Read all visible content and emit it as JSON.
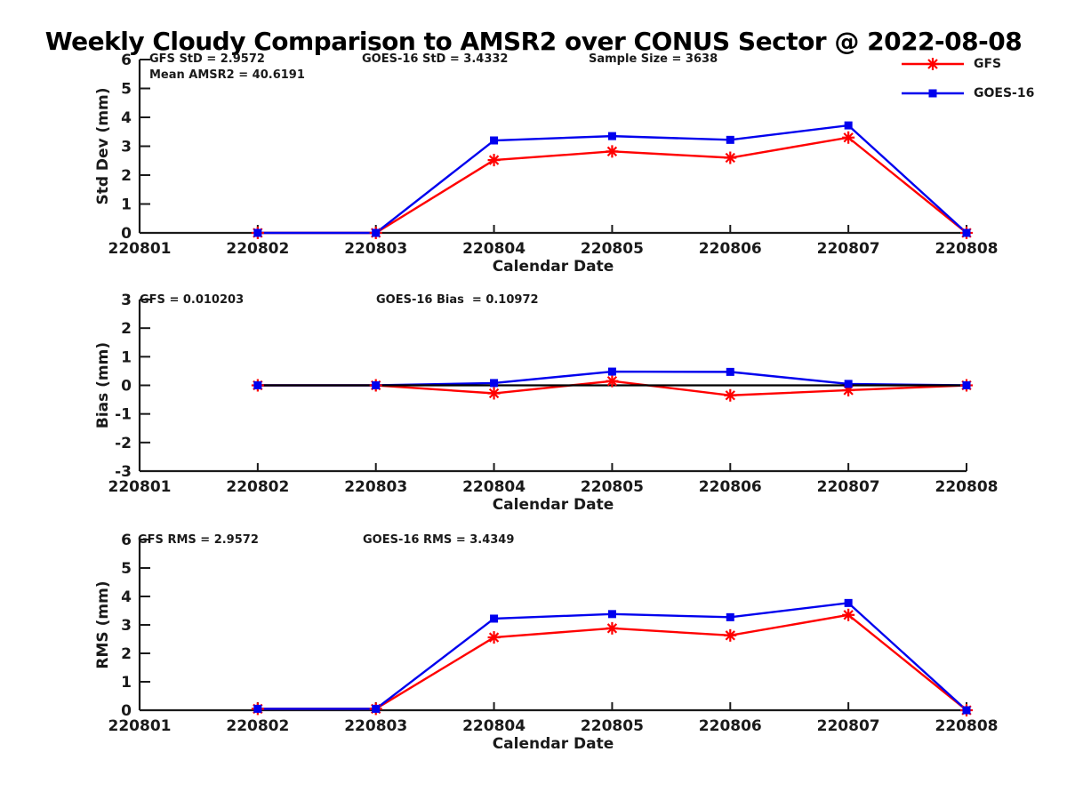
{
  "title": "Weekly Cloudy Comparison to AMSR2 over CONUS Sector @ 2022-08-08",
  "colors": {
    "gfs": "#FF0000",
    "goes16": "#0000EE",
    "axis": "#1a1a1a",
    "zero_line": "#000000"
  },
  "legend": [
    {
      "label": "GFS",
      "series": "gfs",
      "marker": "asterisk"
    },
    {
      "label": "GOES-16",
      "series": "goes16",
      "marker": "square"
    }
  ],
  "chart_data": [
    {
      "type": "line",
      "panel": "std-dev",
      "xlabel": "Calendar Date",
      "ylabel": "Std Dev (mm)",
      "ylim": [
        0,
        6
      ],
      "yticks": [
        0,
        1,
        2,
        3,
        4,
        5,
        6
      ],
      "x_ticks": [
        "220801",
        "220802",
        "220803",
        "220804",
        "220805",
        "220806",
        "220807",
        "220808"
      ],
      "x": [
        "220802",
        "220803",
        "220804",
        "220805",
        "220806",
        "220807",
        "220808"
      ],
      "series": [
        {
          "name": "GFS",
          "color_key": "gfs",
          "marker": "asterisk",
          "values": [
            0,
            0,
            2.52,
            2.82,
            2.6,
            3.3,
            0
          ]
        },
        {
          "name": "GOES-16",
          "color_key": "goes16",
          "marker": "square",
          "values": [
            0,
            0,
            3.2,
            3.35,
            3.22,
            3.72,
            0
          ]
        }
      ],
      "annotations": [
        {
          "text": "GFS StD = 2.9572"
        },
        {
          "text": "Mean AMSR2 = 40.6191"
        },
        {
          "text": "GOES-16 StD = 3.4332"
        },
        {
          "text": "Sample Size = 3638"
        }
      ]
    },
    {
      "type": "line",
      "panel": "bias",
      "xlabel": "Calendar Date",
      "ylabel": "Bias (mm)",
      "ylim": [
        -3,
        3
      ],
      "yticks": [
        3,
        2,
        1,
        0,
        -1,
        -2,
        -3
      ],
      "x_ticks": [
        "220801",
        "220802",
        "220803",
        "220804",
        "220805",
        "220806",
        "220807",
        "220808"
      ],
      "x": [
        "220802",
        "220803",
        "220804",
        "220805",
        "220806",
        "220807",
        "220808"
      ],
      "zero_line": true,
      "series": [
        {
          "name": "GFS",
          "color_key": "gfs",
          "marker": "asterisk",
          "values": [
            0,
            0,
            -0.28,
            0.15,
            -0.35,
            -0.17,
            0
          ]
        },
        {
          "name": "GOES-16",
          "color_key": "goes16",
          "marker": "square",
          "values": [
            0,
            0,
            0.08,
            0.48,
            0.47,
            0.05,
            0
          ]
        }
      ],
      "annotations": [
        {
          "text": "GFS = 0.010203"
        },
        {
          "text": "GOES-16 Bias  = 0.10972"
        }
      ]
    },
    {
      "type": "line",
      "panel": "rms",
      "xlabel": "Calendar Date",
      "ylabel": "RMS (mm)",
      "ylim": [
        0,
        6
      ],
      "yticks": [
        0,
        1,
        2,
        3,
        4,
        5,
        6
      ],
      "x_ticks": [
        "220801",
        "220802",
        "220803",
        "220804",
        "220805",
        "220806",
        "220807",
        "220808"
      ],
      "x": [
        "220802",
        "220803",
        "220804",
        "220805",
        "220806",
        "220807",
        "220808"
      ],
      "series": [
        {
          "name": "GFS",
          "color_key": "gfs",
          "marker": "asterisk",
          "values": [
            0.05,
            0.05,
            2.56,
            2.88,
            2.63,
            3.35,
            0
          ]
        },
        {
          "name": "GOES-16",
          "color_key": "goes16",
          "marker": "square",
          "values": [
            0.05,
            0.05,
            3.22,
            3.38,
            3.27,
            3.77,
            0
          ]
        }
      ],
      "annotations": [
        {
          "text": "GFS RMS = 2.9572"
        },
        {
          "text": "GOES-16 RMS = 3.4349"
        }
      ]
    }
  ]
}
